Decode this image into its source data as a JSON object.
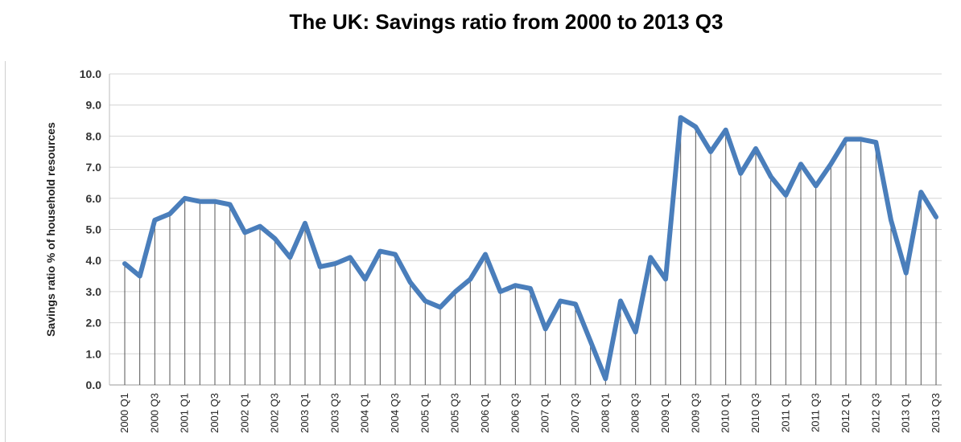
{
  "chart_data": {
    "type": "line",
    "title": "The UK: Savings ratio from 2000 to 2013 Q3",
    "xlabel": "",
    "ylabel": "Savings ratio % of household resources",
    "ylim": [
      0,
      10
    ],
    "yticks": [
      "0.0",
      "1.0",
      "2.0",
      "3.0",
      "4.0",
      "5.0",
      "6.0",
      "7.0",
      "8.0",
      "9.0",
      "10.0"
    ],
    "grid": {
      "horizontal": true,
      "vertical": true
    },
    "legend": "none",
    "line_color": "#4a7ebb",
    "x": [
      "2000 Q1",
      "2000 Q2",
      "2000 Q3",
      "2000 Q4",
      "2001 Q1",
      "2001 Q2",
      "2001 Q3",
      "2001 Q4",
      "2002 Q1",
      "2002 Q2",
      "2002 Q3",
      "2002 Q4",
      "2003 Q1",
      "2003 Q2",
      "2003 Q3",
      "2003 Q4",
      "2004 Q1",
      "2004 Q2",
      "2004 Q3",
      "2004 Q4",
      "2005 Q1",
      "2005 Q2",
      "2005 Q3",
      "2005 Q4",
      "2006 Q1",
      "2006 Q2",
      "2006 Q3",
      "2006 Q4",
      "2007 Q1",
      "2007 Q2",
      "2007 Q3",
      "2007 Q4",
      "2008 Q1",
      "2008 Q2",
      "2008 Q3",
      "2008 Q4",
      "2009 Q1",
      "2009 Q2",
      "2009 Q3",
      "2009 Q4",
      "2010 Q1",
      "2010 Q2",
      "2010 Q3",
      "2010 Q4",
      "2011 Q1",
      "2011 Q2",
      "2011 Q3",
      "2011 Q4",
      "2012 Q1",
      "2012 Q2",
      "2012 Q3",
      "2012 Q4",
      "2013 Q1",
      "2013 Q2",
      "2013 Q3"
    ],
    "x_tick_labels": [
      "2000 Q1",
      "",
      "2000 Q3",
      "",
      "2001 Q1",
      "",
      "2001 Q3",
      "",
      "2002 Q1",
      "",
      "2002 Q3",
      "",
      "2003 Q1",
      "",
      "2003 Q3",
      "",
      "2004 Q1",
      "",
      "2004 Q3",
      "",
      "2005 Q1",
      "",
      "2005 Q3",
      "",
      "2006 Q1",
      "",
      "2006 Q3",
      "",
      "2007 Q1",
      "",
      "2007 Q3",
      "",
      "2008 Q1",
      "",
      "2008 Q3",
      "",
      "2009 Q1",
      "",
      "2009 Q3",
      "",
      "2010 Q1",
      "",
      "2010 Q3",
      "",
      "2011 Q1",
      "",
      "2011 Q3",
      "",
      "2012 Q1",
      "",
      "2012 Q3",
      "",
      "2013 Q1",
      "",
      "2013 Q3"
    ],
    "series": [
      {
        "values": [
          3.9,
          3.5,
          5.3,
          5.5,
          6.0,
          5.9,
          5.9,
          5.8,
          4.9,
          5.1,
          4.7,
          4.1,
          5.2,
          3.8,
          3.9,
          4.1,
          3.4,
          4.3,
          4.2,
          3.3,
          2.7,
          2.5,
          3.0,
          3.4,
          4.2,
          3.0,
          3.2,
          3.1,
          1.8,
          2.7,
          2.6,
          1.4,
          0.2,
          2.7,
          1.7,
          4.1,
          3.4,
          8.6,
          8.3,
          7.5,
          8.2,
          6.8,
          7.6,
          6.7,
          6.1,
          7.1,
          6.4,
          7.1,
          7.9,
          7.9,
          7.8,
          5.3,
          3.6,
          6.2,
          5.4
        ]
      }
    ]
  }
}
